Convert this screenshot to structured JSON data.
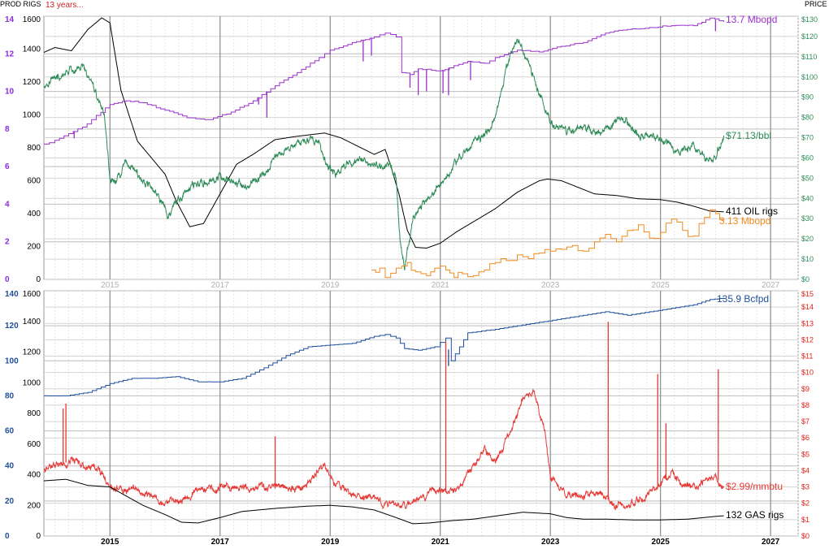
{
  "header": {
    "left_title": "PROD RIGS",
    "subtitle": "13 years...",
    "right_title": "PRICE"
  },
  "chart_data": [
    {
      "type": "line",
      "panel": "top",
      "x_axis": {
        "range": [
          2013.8,
          2027.5
        ],
        "ticks": [
          2015,
          2017,
          2019,
          2021,
          2023,
          2025,
          2027
        ],
        "tick_labels": [
          "2015",
          "2017",
          "2019",
          "2021",
          "2023",
          "2025",
          "2027"
        ]
      },
      "y_axes": [
        {
          "name": "prod",
          "range": [
            0,
            14
          ],
          "ticks": [
            0,
            2,
            4,
            6,
            8,
            10,
            12,
            14
          ],
          "color": "#8a2be2"
        },
        {
          "name": "rigs",
          "range": [
            0,
            1600
          ],
          "ticks": [
            0,
            200,
            400,
            600,
            800,
            1000,
            1200,
            1400,
            1600
          ],
          "color": "#000000"
        },
        {
          "name": "price",
          "range": [
            0,
            130
          ],
          "ticks": [
            0,
            10,
            20,
            30,
            40,
            50,
            60,
            70,
            80,
            90,
            100,
            110,
            120,
            130
          ],
          "tick_labels": [
            "$0",
            "$10",
            "$20",
            "$30",
            "$40",
            "$50",
            "$60",
            "$70",
            "$80",
            "$90",
            "$100",
            "$110",
            "$120",
            "$130"
          ],
          "color": "#2e8b57"
        }
      ],
      "grid": true,
      "series": [
        {
          "name": "OIL rigs",
          "axis": "rigs",
          "color": "#000000",
          "style": "smooth",
          "label": "411 OIL rigs",
          "label_color": "#000000",
          "x": [
            2013.8,
            2014.0,
            2014.3,
            2014.6,
            2014.85,
            2015.0,
            2015.2,
            2015.5,
            2015.8,
            2016.0,
            2016.2,
            2016.45,
            2016.7,
            2017.0,
            2017.3,
            2017.6,
            2018.0,
            2018.4,
            2018.9,
            2019.2,
            2019.5,
            2019.8,
            2020.0,
            2020.1,
            2020.25,
            2020.4,
            2020.55,
            2020.75,
            2021.0,
            2021.3,
            2021.6,
            2022.0,
            2022.4,
            2022.8,
            2022.95,
            2023.2,
            2023.5,
            2023.8,
            2024.2,
            2024.6,
            2025.0,
            2025.3,
            2025.6,
            2025.9,
            2026.15
          ],
          "y": [
            1380,
            1410,
            1390,
            1520,
            1590,
            1560,
            1150,
            840,
            720,
            640,
            480,
            320,
            340,
            520,
            700,
            760,
            850,
            870,
            890,
            860,
            810,
            760,
            790,
            690,
            520,
            300,
            195,
            190,
            220,
            290,
            350,
            430,
            530,
            600,
            610,
            600,
            560,
            520,
            510,
            490,
            485,
            470,
            445,
            415,
            411
          ]
        },
        {
          "name": "Mbopd",
          "axis": "prod",
          "color": "#9932cc",
          "style": "step",
          "label": "13.7 Mbopd",
          "label_color": "#9932cc",
          "x": [
            2013.8,
            2014.0,
            2014.5,
            2015.0,
            2015.3,
            2015.6,
            2016.0,
            2016.4,
            2016.8,
            2017.2,
            2017.6,
            2018.0,
            2018.4,
            2018.8,
            2019.0,
            2019.4,
            2019.8,
            2020.0,
            2020.2,
            2020.3,
            2020.45,
            2020.6,
            2021.0,
            2021.5,
            2021.8,
            2022.0,
            2022.4,
            2022.8,
            2023.2,
            2023.6,
            2024.0,
            2024.4,
            2024.8,
            2025.2,
            2025.6,
            2025.9,
            2026.15
          ],
          "y": [
            7.2,
            7.4,
            8.1,
            9.3,
            9.5,
            9.4,
            9.0,
            8.6,
            8.5,
            8.9,
            9.5,
            10.3,
            11.0,
            11.8,
            12.2,
            12.6,
            12.9,
            13.1,
            12.9,
            11.0,
            10.9,
            11.2,
            11.1,
            11.6,
            11.5,
            11.8,
            12.2,
            12.1,
            12.4,
            12.6,
            13.1,
            13.3,
            13.4,
            13.5,
            13.5,
            13.9,
            13.7
          ],
          "dips": [
            {
              "x": 2014.35,
              "to": 7.5
            },
            {
              "x": 2017.7,
              "to": 9.3
            },
            {
              "x": 2017.85,
              "to": 8.6
            },
            {
              "x": 2019.6,
              "to": 11.6
            },
            {
              "x": 2019.75,
              "to": 11.9
            },
            {
              "x": 2020.45,
              "to": 10.2
            },
            {
              "x": 2020.6,
              "to": 9.8
            },
            {
              "x": 2020.75,
              "to": 10.0
            },
            {
              "x": 2021.05,
              "to": 9.9
            },
            {
              "x": 2021.15,
              "to": 9.8
            },
            {
              "x": 2021.55,
              "to": 10.6
            },
            {
              "x": 2026.0,
              "to": 13.2
            }
          ]
        },
        {
          "name": "Price",
          "axis": "price",
          "color": "#2e8b57",
          "style": "noisy",
          "noise": 2.4,
          "label": "$71.13/bbl",
          "label_color": "#2e8b57",
          "x": [
            2013.8,
            2014.0,
            2014.2,
            2014.5,
            2014.7,
            2014.9,
            2015.0,
            2015.1,
            2015.3,
            2015.5,
            2015.7,
            2015.9,
            2016.05,
            2016.2,
            2016.5,
            2016.8,
            2017.0,
            2017.3,
            2017.5,
            2017.8,
            2018.0,
            2018.3,
            2018.6,
            2018.8,
            2018.95,
            2019.1,
            2019.3,
            2019.6,
            2019.9,
            2020.05,
            2020.2,
            2020.27,
            2020.35,
            2020.5,
            2020.7,
            2021.0,
            2021.3,
            2021.6,
            2021.9,
            2022.0,
            2022.2,
            2022.4,
            2022.6,
            2022.75,
            2023.0,
            2023.3,
            2023.6,
            2023.8,
            2024.0,
            2024.3,
            2024.6,
            2024.9,
            2025.1,
            2025.3,
            2025.6,
            2025.8,
            2025.95,
            2026.15
          ],
          "y": [
            96,
            100,
            102,
            105,
            95,
            80,
            50,
            48,
            58,
            52,
            46,
            40,
            32,
            38,
            46,
            49,
            52,
            48,
            46,
            52,
            60,
            66,
            70,
            67,
            55,
            52,
            58,
            60,
            56,
            58,
            50,
            20,
            5,
            28,
            38,
            46,
            58,
            68,
            73,
            80,
            105,
            118,
            108,
            95,
            78,
            72,
            76,
            72,
            75,
            80,
            72,
            70,
            68,
            62,
            66,
            60,
            58,
            71
          ]
        },
        {
          "name": "Mbopd secondary",
          "axis": "prod",
          "color": "#f28a1e",
          "style": "step",
          "label": "3.13 Mbopd",
          "label_color": "#f28a1e",
          "x": [
            2019.75,
            2019.9,
            2020.0,
            2020.2,
            2020.4,
            2020.55,
            2020.75,
            2020.9,
            2021.1,
            2021.25,
            2021.4,
            2021.6,
            2021.8,
            2022.0,
            2022.2,
            2022.4,
            2022.6,
            2022.8,
            2023.0,
            2023.2,
            2023.4,
            2023.6,
            2023.8,
            2024.0,
            2024.2,
            2024.4,
            2024.6,
            2024.8,
            2025.0,
            2025.2,
            2025.4,
            2025.6,
            2025.8,
            2025.9,
            2026.0,
            2026.15
          ],
          "y": [
            0.5,
            0.6,
            0.1,
            0.6,
            0.9,
            0.4,
            0.2,
            0.6,
            0.5,
            0.1,
            0.3,
            0.2,
            0.5,
            0.9,
            1.0,
            1.3,
            1.1,
            1.4,
            1.5,
            1.6,
            1.8,
            1.5,
            2.0,
            2.4,
            2.0,
            2.6,
            2.9,
            2.2,
            2.5,
            3.2,
            2.6,
            2.3,
            3.3,
            3.7,
            3.5,
            3.13
          ],
          "clip_x": [
            2019.75,
            2026.2
          ]
        }
      ]
    },
    {
      "type": "line",
      "panel": "bottom",
      "x_axis": {
        "range": [
          2013.8,
          2027.5
        ],
        "ticks": [
          2015,
          2017,
          2019,
          2021,
          2023,
          2025,
          2027
        ],
        "tick_labels": [
          "2015",
          "2017",
          "2019",
          "2021",
          "2023",
          "2025",
          "2027"
        ]
      },
      "y_axes": [
        {
          "name": "prod",
          "range": [
            0,
            140
          ],
          "ticks": [
            0,
            20,
            40,
            60,
            80,
            100,
            120,
            140
          ],
          "color": "#1f4e9c"
        },
        {
          "name": "rigs",
          "range": [
            0,
            1600
          ],
          "ticks": [
            0,
            200,
            400,
            600,
            800,
            1000,
            1200,
            1400,
            1600
          ],
          "color": "#000000"
        },
        {
          "name": "price",
          "range": [
            0,
            15
          ],
          "ticks": [
            0,
            1,
            2,
            3,
            4,
            5,
            6,
            7,
            8,
            9,
            10,
            11,
            12,
            13,
            14,
            15
          ],
          "tick_labels": [
            "$0",
            "$1",
            "$2",
            "$3",
            "$4",
            "$5",
            "$6",
            "$7",
            "$8",
            "$9",
            "$10",
            "$11",
            "$12",
            "$13",
            "$14",
            "$15"
          ],
          "color": "#e0201b"
        }
      ],
      "grid": true,
      "series": [
        {
          "name": "Bcfpd",
          "axis": "prod",
          "color": "#1f4e9c",
          "style": "step",
          "label": "135.9 Bcfpd",
          "label_color": "#1f4e9c",
          "x": [
            2013.8,
            2014.2,
            2014.6,
            2015.0,
            2015.4,
            2015.8,
            2016.2,
            2016.6,
            2017.0,
            2017.4,
            2017.8,
            2018.2,
            2018.6,
            2019.0,
            2019.4,
            2019.8,
            2020.0,
            2020.2,
            2020.35,
            2020.6,
            2020.9,
            2021.1,
            2021.2,
            2021.5,
            2022.0,
            2022.4,
            2022.8,
            2023.2,
            2023.6,
            2024.0,
            2024.4,
            2024.8,
            2025.2,
            2025.6,
            2025.9,
            2026.15
          ],
          "y": [
            80,
            80,
            82,
            87,
            90,
            90,
            91,
            88,
            88,
            90,
            96,
            103,
            108,
            109,
            110,
            114,
            115,
            113,
            107,
            106,
            108,
            113,
            100,
            116,
            118,
            120,
            122,
            124,
            126,
            128,
            126,
            128,
            130,
            132,
            135,
            135.9
          ],
          "dips": [
            {
              "x": 2021.15,
              "to": 97
            }
          ]
        },
        {
          "name": "Price",
          "axis": "price",
          "color": "#e53935",
          "style": "noisy",
          "noise": 0.28,
          "label": "$2.99/mmbtu",
          "label_color": "#e53935",
          "x": [
            2013.8,
            2014.0,
            2014.3,
            2014.5,
            2014.8,
            2015.0,
            2015.3,
            2015.6,
            2016.0,
            2016.3,
            2016.6,
            2017.0,
            2017.3,
            2017.6,
            2018.0,
            2018.5,
            2018.9,
            2019.1,
            2019.4,
            2019.8,
            2020.0,
            2020.3,
            2020.6,
            2020.9,
            2021.0,
            2021.3,
            2021.6,
            2021.8,
            2022.0,
            2022.3,
            2022.5,
            2022.7,
            2022.9,
            2023.0,
            2023.3,
            2023.6,
            2023.9,
            2024.0,
            2024.3,
            2024.6,
            2024.9,
            2025.0,
            2025.2,
            2025.4,
            2025.6,
            2025.8,
            2026.0,
            2026.15
          ],
          "y": [
            4.1,
            4.3,
            4.6,
            4.4,
            4.0,
            3.0,
            2.9,
            2.7,
            2.0,
            2.2,
            2.8,
            3.0,
            3.0,
            2.9,
            2.9,
            3.0,
            4.3,
            3.2,
            2.6,
            2.3,
            1.9,
            1.8,
            2.2,
            2.8,
            2.6,
            2.8,
            4.2,
            5.4,
            4.4,
            6.6,
            8.4,
            8.8,
            6.4,
            3.6,
            2.5,
            2.4,
            2.6,
            2.3,
            1.8,
            2.2,
            2.9,
            3.1,
            3.8,
            3.2,
            3.0,
            3.4,
            3.6,
            2.99
          ],
          "spikes": [
            {
              "x": 2014.15,
              "to": 7.8
            },
            {
              "x": 2014.2,
              "to": 8.1
            },
            {
              "x": 2018.0,
              "to": 6.1
            },
            {
              "x": 2021.1,
              "to": 11.9
            },
            {
              "x": 2024.05,
              "to": 13.1
            },
            {
              "x": 2024.95,
              "to": 9.9
            },
            {
              "x": 2025.1,
              "to": 6.9
            },
            {
              "x": 2026.05,
              "to": 10.2
            }
          ]
        },
        {
          "name": "GAS rigs",
          "axis": "rigs",
          "color": "#000000",
          "style": "smooth",
          "label": "132 GAS rigs",
          "label_color": "#000000",
          "x": [
            2013.8,
            2014.2,
            2014.6,
            2015.0,
            2015.3,
            2015.6,
            2016.0,
            2016.3,
            2016.6,
            2017.0,
            2017.4,
            2018.0,
            2018.6,
            2019.0,
            2019.4,
            2019.8,
            2020.2,
            2020.5,
            2020.8,
            2021.2,
            2021.6,
            2022.0,
            2022.5,
            2023.0,
            2023.3,
            2023.6,
            2024.0,
            2024.5,
            2025.0,
            2025.5,
            2026.0,
            2026.15
          ],
          "y": [
            360,
            370,
            330,
            320,
            260,
            200,
            140,
            90,
            85,
            120,
            160,
            180,
            195,
            200,
            190,
            170,
            120,
            80,
            85,
            100,
            110,
            130,
            155,
            145,
            120,
            110,
            110,
            105,
            105,
            110,
            128,
            132
          ]
        }
      ]
    }
  ]
}
